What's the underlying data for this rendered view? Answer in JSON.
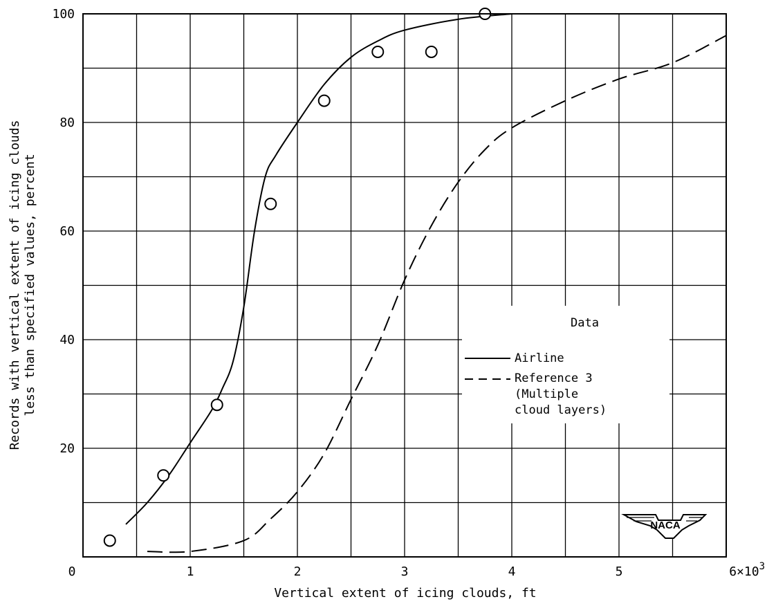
{
  "chart_data": {
    "type": "line",
    "title": "",
    "xlabel": "Vertical extent of icing clouds, ft",
    "ylabel": "Records with vertical extent of icing clouds less than specified values, percent",
    "ylabel_lines": [
      "Records with vertical extent of icing clouds",
      "less than specified values, percent"
    ],
    "xlim": [
      0,
      6000
    ],
    "ylim": [
      0,
      100
    ],
    "x_ticks": [
      {
        "value": 0,
        "label": "0"
      },
      {
        "value": 1000,
        "label": "1"
      },
      {
        "value": 2000,
        "label": "2"
      },
      {
        "value": 3000,
        "label": "3"
      },
      {
        "value": 4000,
        "label": "4"
      },
      {
        "value": 5000,
        "label": "5"
      },
      {
        "value": 6000,
        "label": "6×10"
      }
    ],
    "x_exponent": "3",
    "y_ticks": [
      {
        "value": 0,
        "label": ""
      },
      {
        "value": 20,
        "label": "20"
      },
      {
        "value": 40,
        "label": "40"
      },
      {
        "value": 60,
        "label": "60"
      },
      {
        "value": 80,
        "label": "80"
      },
      {
        "value": 100,
        "label": "100"
      }
    ],
    "grid": true,
    "grid_x_step": 500,
    "grid_y_step": 10,
    "legend": {
      "title": "Data",
      "placement": "right",
      "entries": [
        {
          "label_lines": [
            "Airline"
          ],
          "style": "solid"
        },
        {
          "label_lines": [
            "Reference 3",
            "(Multiple",
            "cloud layers)"
          ],
          "style": "dashed"
        }
      ]
    },
    "series": [
      {
        "name": "Airline",
        "style": "solid",
        "x": [
          400,
          600,
          800,
          1000,
          1200,
          1300,
          1400,
          1500,
          1600,
          1700,
          1800,
          2000,
          2250,
          2500,
          2750,
          3000,
          3500,
          4000
        ],
        "y": [
          6,
          10,
          15,
          21,
          27,
          31,
          36,
          46,
          60,
          70,
          74,
          80,
          87,
          92,
          95,
          97,
          99,
          100
        ]
      },
      {
        "name": "Reference 3",
        "style": "dashed",
        "x": [
          600,
          1000,
          1500,
          1750,
          2000,
          2250,
          2500,
          2750,
          3000,
          3250,
          3500,
          3750,
          4000,
          4500,
          5000,
          5500,
          6000
        ],
        "y": [
          1,
          1,
          3,
          7,
          12,
          19,
          29,
          39,
          51,
          61,
          69,
          75,
          79,
          84,
          88,
          91,
          96
        ]
      },
      {
        "name": "Airline points",
        "style": "markers",
        "x": [
          250,
          750,
          1250,
          1750,
          2250,
          2750,
          3250,
          3750
        ],
        "y": [
          3,
          15,
          28,
          65,
          84,
          93,
          93,
          100
        ]
      }
    ],
    "logo_text": "NACA"
  }
}
